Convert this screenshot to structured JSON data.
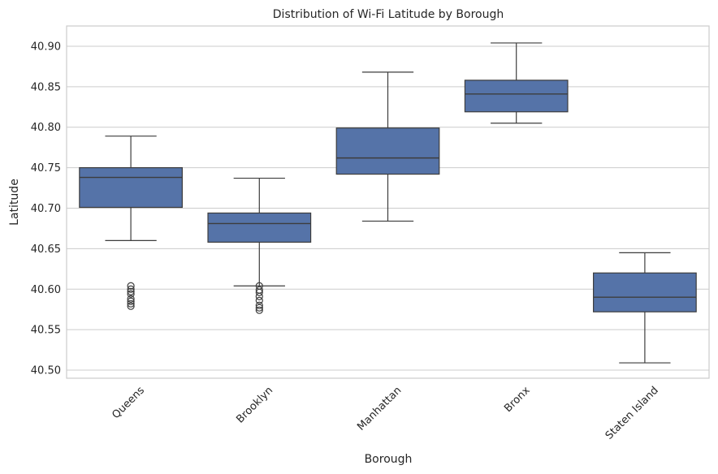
{
  "chart_data": {
    "type": "box",
    "title": "Distribution of Wi-Fi Latitude by Borough",
    "xlabel": "Borough",
    "ylabel": "Latitude",
    "ylim": [
      40.49,
      40.925
    ],
    "yticks": [
      40.5,
      40.55,
      40.6,
      40.65,
      40.7,
      40.75,
      40.8,
      40.85,
      40.9
    ],
    "grid": true,
    "color": "#5573a8",
    "categories": [
      "Queens",
      "Brooklyn",
      "Manhattan",
      "Bronx",
      "Staten Island"
    ],
    "boxes": [
      {
        "category": "Queens",
        "whisker_low": 40.66,
        "q1": 40.701,
        "median": 40.738,
        "q3": 40.75,
        "whisker_high": 40.789,
        "outliers": [
          40.604,
          40.6,
          40.597,
          40.594,
          40.588,
          40.585,
          40.582,
          40.579
        ]
      },
      {
        "category": "Brooklyn",
        "whisker_low": 40.604,
        "q1": 40.658,
        "median": 40.681,
        "q3": 40.694,
        "whisker_high": 40.737,
        "outliers": [
          40.604,
          40.599,
          40.596,
          40.591,
          40.586,
          40.58,
          40.577,
          40.574
        ]
      },
      {
        "category": "Manhattan",
        "whisker_low": 40.684,
        "q1": 40.742,
        "median": 40.762,
        "q3": 40.799,
        "whisker_high": 40.868,
        "outliers": []
      },
      {
        "category": "Bronx",
        "whisker_low": 40.805,
        "q1": 40.819,
        "median": 40.841,
        "q3": 40.858,
        "whisker_high": 40.904,
        "outliers": []
      },
      {
        "category": "Staten Island",
        "whisker_low": 40.509,
        "q1": 40.572,
        "median": 40.59,
        "q3": 40.62,
        "whisker_high": 40.645,
        "outliers": []
      }
    ]
  }
}
